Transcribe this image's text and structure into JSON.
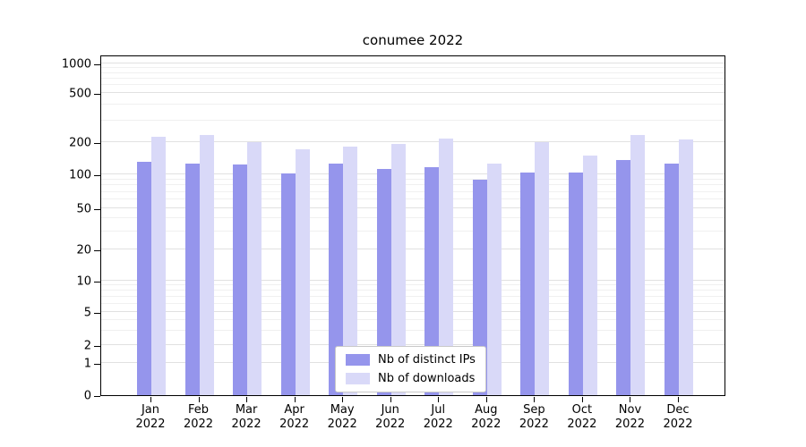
{
  "title": "conumee 2022",
  "chart_data": {
    "type": "bar",
    "title": "conumee 2022",
    "x_months": [
      "Jan",
      "Feb",
      "Mar",
      "Apr",
      "May",
      "Jun",
      "Jul",
      "Aug",
      "Sep",
      "Oct",
      "Nov",
      "Dec"
    ],
    "year": "2022",
    "series": [
      {
        "name": "Nb of distinct IPs",
        "color": "#9595ec",
        "values": [
          130,
          127,
          124,
          102,
          126,
          112,
          116,
          90,
          104,
          104,
          135,
          126
        ]
      },
      {
        "name": "Nb of downloads",
        "color": "#d9d9f8",
        "values": [
          220,
          230,
          200,
          170,
          183,
          193,
          215,
          125,
          200,
          150,
          230,
          210
        ]
      }
    ],
    "y_ticks": [
      0,
      1,
      2,
      5,
      10,
      20,
      50,
      100,
      200,
      500,
      1000
    ],
    "y_scale": "log-like (0 baseline plus log decades)",
    "ylim": [
      0,
      1000
    ],
    "grid": true,
    "legend_position": "lower center"
  }
}
